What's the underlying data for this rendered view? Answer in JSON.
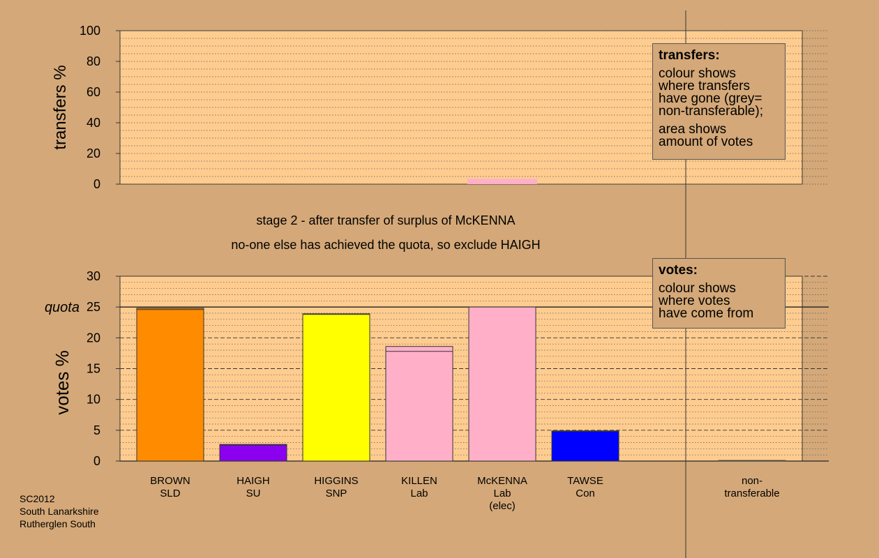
{
  "chart_data": [
    {
      "type": "bar",
      "name": "transfers",
      "ylabel": "transfers %",
      "ylim": [
        0,
        100
      ],
      "yticks": [
        0,
        20,
        40,
        60,
        80,
        100
      ],
      "categories": [
        "BROWN SLD",
        "HAIGH SU",
        "HIGGINS SNP",
        "KILLEN Lab",
        "McKENNA Lab (elec)",
        "TAWSE Con",
        "non-transferable"
      ],
      "values": [
        0,
        0,
        0,
        0,
        3.5,
        0,
        0
      ],
      "colors": [
        "#ff8c00",
        "#8b00ee",
        "#ffff00",
        "#ffb0c8",
        "#ffb0c8",
        "#0000ff",
        "#888888"
      ],
      "legend_box": {
        "title": "transfers:",
        "lines": [
          "colour shows",
          "where transfers",
          "have gone (grey=",
          "non-transferable);"
        ],
        "lines2": [
          "area shows",
          "amount of votes"
        ]
      }
    },
    {
      "type": "bar",
      "name": "votes",
      "title": "stage 2 - after transfer of surplus of McKENNA",
      "subtitle": "no-one else has achieved the quota, so exclude HAIGH",
      "ylabel": "votes %",
      "ylim": [
        0,
        30
      ],
      "yticks": [
        0,
        5,
        10,
        15,
        20,
        25,
        30
      ],
      "quota": 25,
      "quota_label": "quota",
      "categories": [
        {
          "name": "BROWN",
          "party": "SLD",
          "extra": ""
        },
        {
          "name": "HAIGH",
          "party": "SU",
          "extra": ""
        },
        {
          "name": "HIGGINS",
          "party": "SNP",
          "extra": ""
        },
        {
          "name": "KILLEN",
          "party": "Lab",
          "extra": ""
        },
        {
          "name": "McKENNA",
          "party": "Lab",
          "extra": "(elec)"
        },
        {
          "name": "TAWSE",
          "party": "Con",
          "extra": ""
        },
        {
          "name": "non-",
          "party": "transferable",
          "extra": ""
        }
      ],
      "values": [
        24.8,
        2.7,
        23.9,
        18.6,
        25.0,
        4.9,
        0.1
      ],
      "transfer_added": [
        0.2,
        0.1,
        0.1,
        0.8,
        0,
        0.1,
        0.1
      ],
      "colors": [
        "#ff8c00",
        "#8b00ee",
        "#ffff00",
        "#ffb0c8",
        "#ffb0c8",
        "#0000ff",
        "#888888"
      ],
      "legend_box": {
        "title": "votes:",
        "lines": [
          "colour shows",
          "where votes",
          "have come from"
        ]
      }
    }
  ],
  "caption": [
    "SC2012",
    "South Lanarkshire",
    "Rutherglen South"
  ],
  "colors": {
    "background": "#d4a878",
    "plot_bg": "#ffcc90",
    "grid": "#555555"
  }
}
